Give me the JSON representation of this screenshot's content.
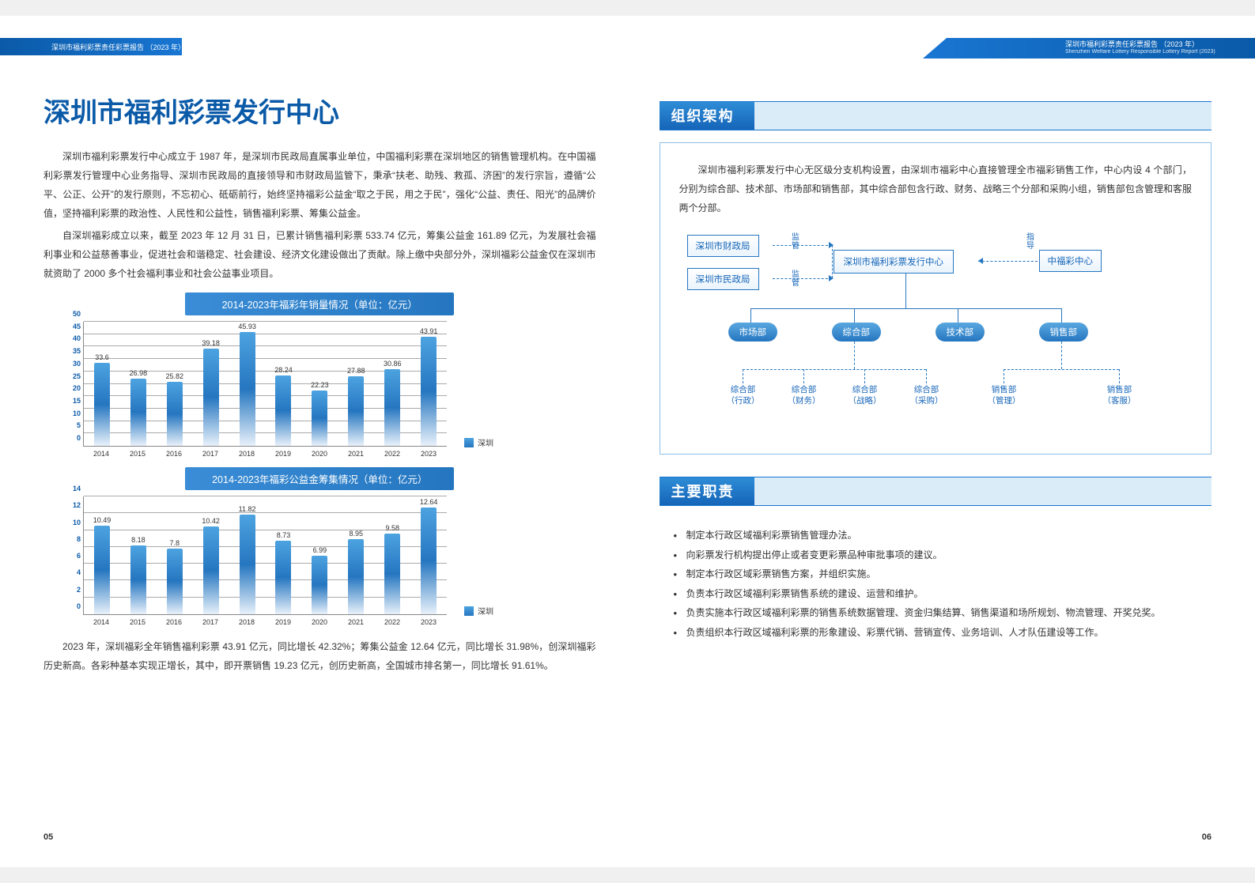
{
  "header": {
    "left": "深圳市福利彩票责任彩票报告 （2023 年）",
    "right_cn": "深圳市福利彩票责任彩票报告 （2023 年）",
    "right_en": "Shenzhen Welfare Lottery Responsible Lottery Report (2023)"
  },
  "title": "深圳市福利彩票发行中心",
  "intro1": "深圳市福利彩票发行中心成立于 1987 年，是深圳市民政局直属事业单位，中国福利彩票在深圳地区的销售管理机构。在中国福利彩票发行管理中心业务指导、深圳市民政局的直接领导和市财政局监管下，秉承“扶老、助残、救孤、济困”的发行宗旨，遵循“公平、公正、公开”的发行原则，不忘初心、砥砺前行，始终坚持福彩公益金“取之于民，用之于民”，强化“公益、责任、阳光”的品牌价值，坚持福利彩票的政治性、人民性和公益性，销售福利彩票、筹集公益金。",
  "intro2": "自深圳福彩成立以来，截至 2023 年 12 月 31 日，已累计销售福利彩票 533.74 亿元，筹集公益金 161.89 亿元，为发展社会福利事业和公益慈善事业，促进社会和谐稳定、社会建设、经济文化建设做出了贡献。除上缴中央部分外，深圳福彩公益金仅在深圳市就资助了 2000 多个社会福利事业和社会公益事业项目。",
  "chart1": {
    "title": "2014-2023年福彩年销量情况（单位：亿元）",
    "ylim": 50,
    "ystep": 5,
    "height": 158,
    "categories": [
      "2014",
      "2015",
      "2016",
      "2017",
      "2018",
      "2019",
      "2020",
      "2021",
      "2022",
      "2023"
    ],
    "values": [
      33.6,
      26.98,
      25.82,
      39.18,
      45.93,
      28.24,
      22.23,
      27.88,
      30.86,
      43.91
    ],
    "legend": "深圳"
  },
  "chart2": {
    "title": "2014-2023年福彩公益金筹集情况（单位：亿元）",
    "ylim": 14,
    "ystep": 2,
    "height": 150,
    "categories": [
      "2014",
      "2015",
      "2016",
      "2017",
      "2018",
      "2019",
      "2020",
      "2021",
      "2022",
      "2023"
    ],
    "values": [
      10.49,
      8.18,
      7.8,
      10.42,
      11.82,
      8.73,
      6.99,
      8.95,
      9.58,
      12.64
    ],
    "legend": "深圳"
  },
  "summary": "2023 年，深圳福彩全年销售福利彩票 43.91 亿元，同比增长 42.32%；筹集公益金 12.64 亿元，同比增长 31.98%，创深圳福彩历史新高。各彩种基本实现正增长，其中，即开票销售 19.23 亿元，创历史新高，全国城市排名第一，同比增长 91.61%。",
  "page_left": "05",
  "page_right": "06",
  "org": {
    "heading": "组织架构",
    "desc": "深圳市福利彩票发行中心无区级分支机构设置，由深圳市福彩中心直接管理全市福彩销售工作，中心内设 4 个部门，分别为综合部、技术部、市场部和销售部，其中综合部包含行政、财务、战略三个分部和采购小组，销售部包含管理和客服两个分部。",
    "top_left1": "深圳市财政局",
    "top_left2": "深圳市民政局",
    "center": "深圳市福利彩票发行中心",
    "top_right": "中福彩中心",
    "note1": "监管",
    "note2": "监管",
    "note3": "指导",
    "depts": [
      "市场部",
      "综合部",
      "技术部",
      "销售部"
    ],
    "subs": [
      {
        "l1": "综合部",
        "l2": "（行政）"
      },
      {
        "l1": "综合部",
        "l2": "（财务）"
      },
      {
        "l1": "综合部",
        "l2": "（战略）"
      },
      {
        "l1": "综合部",
        "l2": "（采购）"
      },
      {
        "l1": "销售部",
        "l2": "（管理）"
      },
      {
        "l1": "销售部",
        "l2": "（客服）"
      }
    ]
  },
  "duty": {
    "heading": "主要职责",
    "items": [
      "制定本行政区域福利彩票销售管理办法。",
      "向彩票发行机构提出停止或者变更彩票品种审批事项的建议。",
      "制定本行政区域彩票销售方案，并组织实施。",
      "负责本行政区域福利彩票销售系统的建设、运营和维护。",
      "负责实施本行政区域福利彩票的销售系统数据管理、资金归集结算、销售渠道和场所规划、物流管理、开奖兑奖。",
      "负责组织本行政区域福利彩票的形象建设、彩票代销、营销宣传、业务培训、人才队伍建设等工作。"
    ]
  },
  "colors": {
    "primary": "#0a5aa8",
    "accent": "#1976d2",
    "bar_top": "#4da3e0",
    "bar_bot": "#2576c0"
  }
}
